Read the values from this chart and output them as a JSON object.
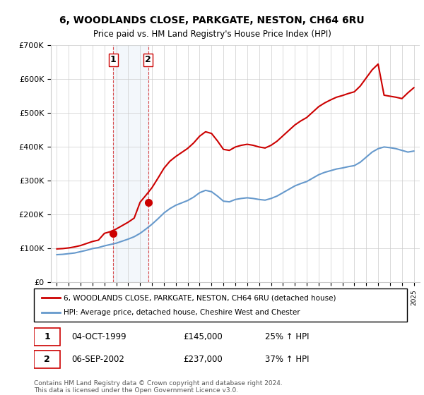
{
  "title_line1": "6, WOODLANDS CLOSE, PARKGATE, NESTON, CH64 6RU",
  "title_line2": "Price paid vs. HM Land Registry's House Price Index (HPI)",
  "legend_line1": "6, WOODLANDS CLOSE, PARKGATE, NESTON, CH64 6RU (detached house)",
  "legend_line2": "HPI: Average price, detached house, Cheshire West and Chester",
  "transaction1_label": "1",
  "transaction1_date": "04-OCT-1999",
  "transaction1_price": "£145,000",
  "transaction1_hpi": "25% ↑ HPI",
  "transaction2_label": "2",
  "transaction2_date": "06-SEP-2002",
  "transaction2_price": "£237,000",
  "transaction2_hpi": "37% ↑ HPI",
  "footer": "Contains HM Land Registry data © Crown copyright and database right 2024.\nThis data is licensed under the Open Government Licence v3.0.",
  "red_color": "#cc0000",
  "blue_color": "#6699cc",
  "highlight_fill": "#d0e0f0",
  "ylim": [
    0,
    700000
  ],
  "yticks": [
    0,
    100000,
    200000,
    300000,
    400000,
    500000,
    600000,
    700000
  ],
  "ytick_labels": [
    "£0",
    "£100K",
    "£200K",
    "£300K",
    "£400K",
    "£500K",
    "£600K",
    "£700K"
  ],
  "background_color": "#ffffff",
  "grid_color": "#cccccc"
}
